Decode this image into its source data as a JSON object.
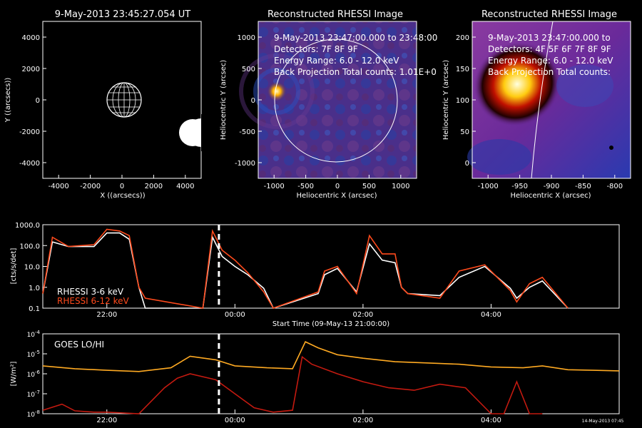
{
  "panels": {
    "orbit": {
      "title": "9-May-2013 23:45:27.054 UT",
      "xlabel": "X ((arcsecs))",
      "ylabel": "Y ((arcsecs))",
      "xticks": [
        "-4000",
        "-2000",
        "0",
        "2000",
        "4000"
      ],
      "yticks": [
        "4000",
        "2000",
        "0",
        "-2000",
        "-4000"
      ]
    },
    "image1": {
      "title": "Reconstructed RHESSI Image",
      "time": "9-May-2013 23:47:00.000 to 23:48:00",
      "detectors": "Detectors: 7F 8F 9F",
      "energy": "Energy Range: 6.0 - 12.0 keV",
      "projection": "Back Projection     Total counts: 1.01E+0",
      "xlabel": "Heliocentric X (arcsec)",
      "ylabel": "Heliocentric Y (arcsec)",
      "xticks": [
        "-1000",
        "-500",
        "0",
        "500",
        "1000"
      ],
      "yticks": [
        "1000",
        "500",
        "0",
        "-500",
        "-1000"
      ]
    },
    "image2": {
      "title": "Reconstructed RHESSI Image",
      "time": "9-May-2013 23:47:00.000 to",
      "detectors": "Detectors: 4F 5F 6F 7F 8F 9F",
      "energy": "Energy Range: 6.0 - 12.0 keV",
      "projection": "Back Projection     Total counts:",
      "xlabel": "Heliocentric X (arcsec)",
      "ylabel": "Heliocentric Y (arcsec)",
      "xticks": [
        "-1000",
        "-950",
        "-900",
        "-850",
        "-800"
      ],
      "yticks": [
        "200",
        "150",
        "100",
        "50",
        "0"
      ]
    }
  },
  "chart_data": [
    {
      "type": "line",
      "ylabel": "[cts/s/det]",
      "xlabel": "Start Time (09-May-13 21:00:00)",
      "yscale": "log",
      "ylim": [
        0.1,
        1000
      ],
      "yticks": [
        "1000.0",
        "100.0",
        "10.0",
        "1.0",
        "0.1"
      ],
      "xticks": [
        "22:00",
        "00:00",
        "02:00",
        "04:00"
      ],
      "series": [
        {
          "name": "RHESSI  3-6 keV",
          "color": "#ffffff",
          "x_hours": [
            0.0,
            0.15,
            0.4,
            0.8,
            1.0,
            1.2,
            1.35,
            1.5,
            1.6,
            2.5,
            2.65,
            2.8,
            3.0,
            3.2,
            3.45,
            3.6,
            4.3,
            4.4,
            4.6,
            4.9,
            5.1,
            5.3,
            5.5,
            5.6,
            5.7,
            6.2,
            6.5,
            6.9,
            7.3,
            7.4,
            7.6,
            7.8,
            8.2
          ],
          "values": [
            0.5,
            150,
            90,
            90,
            400,
            400,
            200,
            1,
            0.1,
            0.1,
            250,
            30,
            10,
            4,
            0.9,
            0.1,
            0.5,
            4,
            8,
            0.6,
            120,
            20,
            15,
            1,
            0.5,
            0.4,
            3,
            10,
            0.9,
            0.3,
            1,
            2,
            0.1
          ]
        },
        {
          "name": "RHESSI 6-12 keV",
          "color": "#ff4a1c",
          "x_hours": [
            0.0,
            0.15,
            0.4,
            0.8,
            1.0,
            1.2,
            1.35,
            1.5,
            1.6,
            2.5,
            2.65,
            2.8,
            3.0,
            3.2,
            3.45,
            3.6,
            4.3,
            4.4,
            4.6,
            4.9,
            5.1,
            5.3,
            5.5,
            5.6,
            5.7,
            6.2,
            6.5,
            6.9,
            7.3,
            7.4,
            7.6,
            7.8,
            8.2
          ],
          "values": [
            0.5,
            250,
            90,
            110,
            600,
            500,
            300,
            1,
            0.3,
            0.1,
            500,
            60,
            20,
            5,
            0.6,
            0.1,
            0.6,
            6,
            10,
            0.5,
            300,
            40,
            40,
            1,
            0.5,
            0.3,
            6,
            12,
            0.7,
            0.2,
            1.5,
            3,
            0.1
          ]
        }
      ],
      "marker_hours": 2.75
    },
    {
      "type": "line",
      "ylabel": "[W/m²]",
      "xlabel": "Start Time (09-May-13 21:00:00)",
      "yscale": "log",
      "ylim": [
        1e-08,
        0.0001
      ],
      "ytick_exponents": [
        "-4",
        "-5",
        "-6",
        "-7",
        "-8"
      ],
      "xticks": [
        "22:00",
        "00:00",
        "02:00",
        "04:00"
      ],
      "annotation": "GOES LO/HI",
      "stamp": "14-May-2013 07:45",
      "series": [
        {
          "name": "GOES low",
          "color": "#ffaa22",
          "x_hours": [
            0,
            0.5,
            1.0,
            1.5,
            2.0,
            2.3,
            2.7,
            3.0,
            3.5,
            3.9,
            4.1,
            4.3,
            4.6,
            5.0,
            5.5,
            6.0,
            6.5,
            6.8,
            7.0,
            7.5,
            7.8,
            8.2,
            8.6,
            9.0
          ],
          "values": [
            2.5e-06,
            1.8e-06,
            1.5e-06,
            1.3e-06,
            2e-06,
            7.5e-06,
            5e-06,
            2.5e-06,
            2e-06,
            1.8e-06,
            4e-05,
            2e-05,
            9e-06,
            6e-06,
            4e-06,
            3.5e-06,
            3e-06,
            2.5e-06,
            2.2e-06,
            2e-06,
            2.5e-06,
            1.6e-06,
            1.5e-06,
            1.4e-06
          ]
        },
        {
          "name": "GOES high",
          "color": "#c41a10",
          "x_hours": [
            0,
            0.3,
            0.5,
            0.8,
            1.0,
            1.5,
            1.9,
            2.1,
            2.3,
            2.7,
            3.0,
            3.3,
            3.6,
            3.9,
            4.05,
            4.2,
            4.6,
            5.0,
            5.4,
            5.8,
            6.2,
            6.6,
            7.0,
            7.2,
            7.4,
            7.6,
            7.8
          ],
          "values": [
            1.5e-08,
            3e-08,
            1.4e-08,
            1.2e-08,
            1.2e-08,
            1e-08,
            2e-07,
            6e-07,
            1e-06,
            5e-07,
            1e-07,
            2e-08,
            1.2e-08,
            1.5e-08,
            7e-06,
            3e-06,
            1e-06,
            4e-07,
            2e-07,
            1.5e-07,
            3e-07,
            2e-07,
            1e-08,
            1e-08,
            4e-07,
            1e-08,
            1e-08
          ]
        }
      ],
      "marker_hours": 2.75
    }
  ]
}
